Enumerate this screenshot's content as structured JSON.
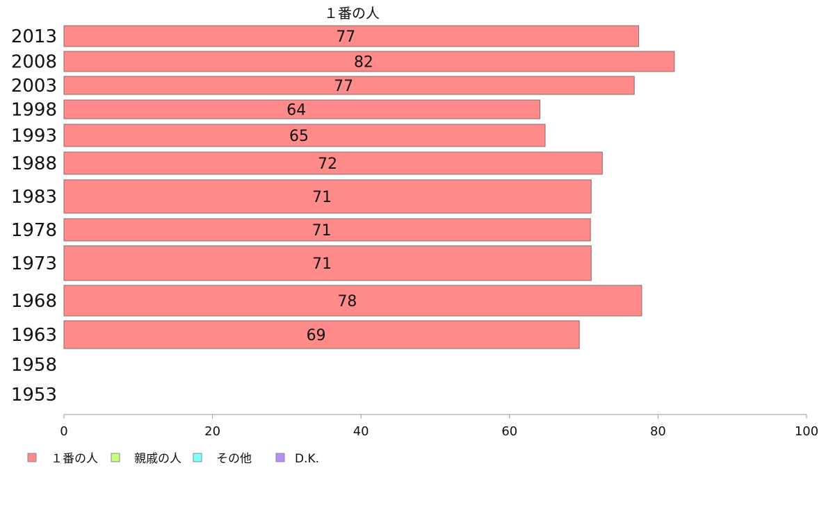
{
  "chart_data": {
    "type": "bar",
    "orientation": "horizontal",
    "title": "１番の人",
    "categories": [
      "2013",
      "2008",
      "2003",
      "1998",
      "1993",
      "1988",
      "1983",
      "1978",
      "1973",
      "1968",
      "1963",
      "1958",
      "1953"
    ],
    "series": [
      {
        "name": "１番の人",
        "color": "#ff8a8a",
        "values": [
          77.4,
          82.2,
          76.8,
          64.1,
          64.8,
          72.5,
          71.0,
          70.9,
          71.0,
          77.8,
          69.4,
          null,
          null
        ],
        "labels": [
          "77",
          "82",
          "77",
          "64",
          "65",
          "72",
          "71",
          "71",
          "71",
          "78",
          "69",
          "",
          ""
        ]
      },
      {
        "name": "親戚の人",
        "color": "#c8ff80"
      },
      {
        "name": "その他",
        "color": "#80ffff"
      },
      {
        "name": "D.K.",
        "color": "#b88cff"
      }
    ],
    "xlim": [
      0,
      100
    ],
    "xticks": [
      "0",
      "20",
      "40",
      "60",
      "80",
      "100"
    ],
    "legend_position": "bottom-left",
    "grid": false
  }
}
